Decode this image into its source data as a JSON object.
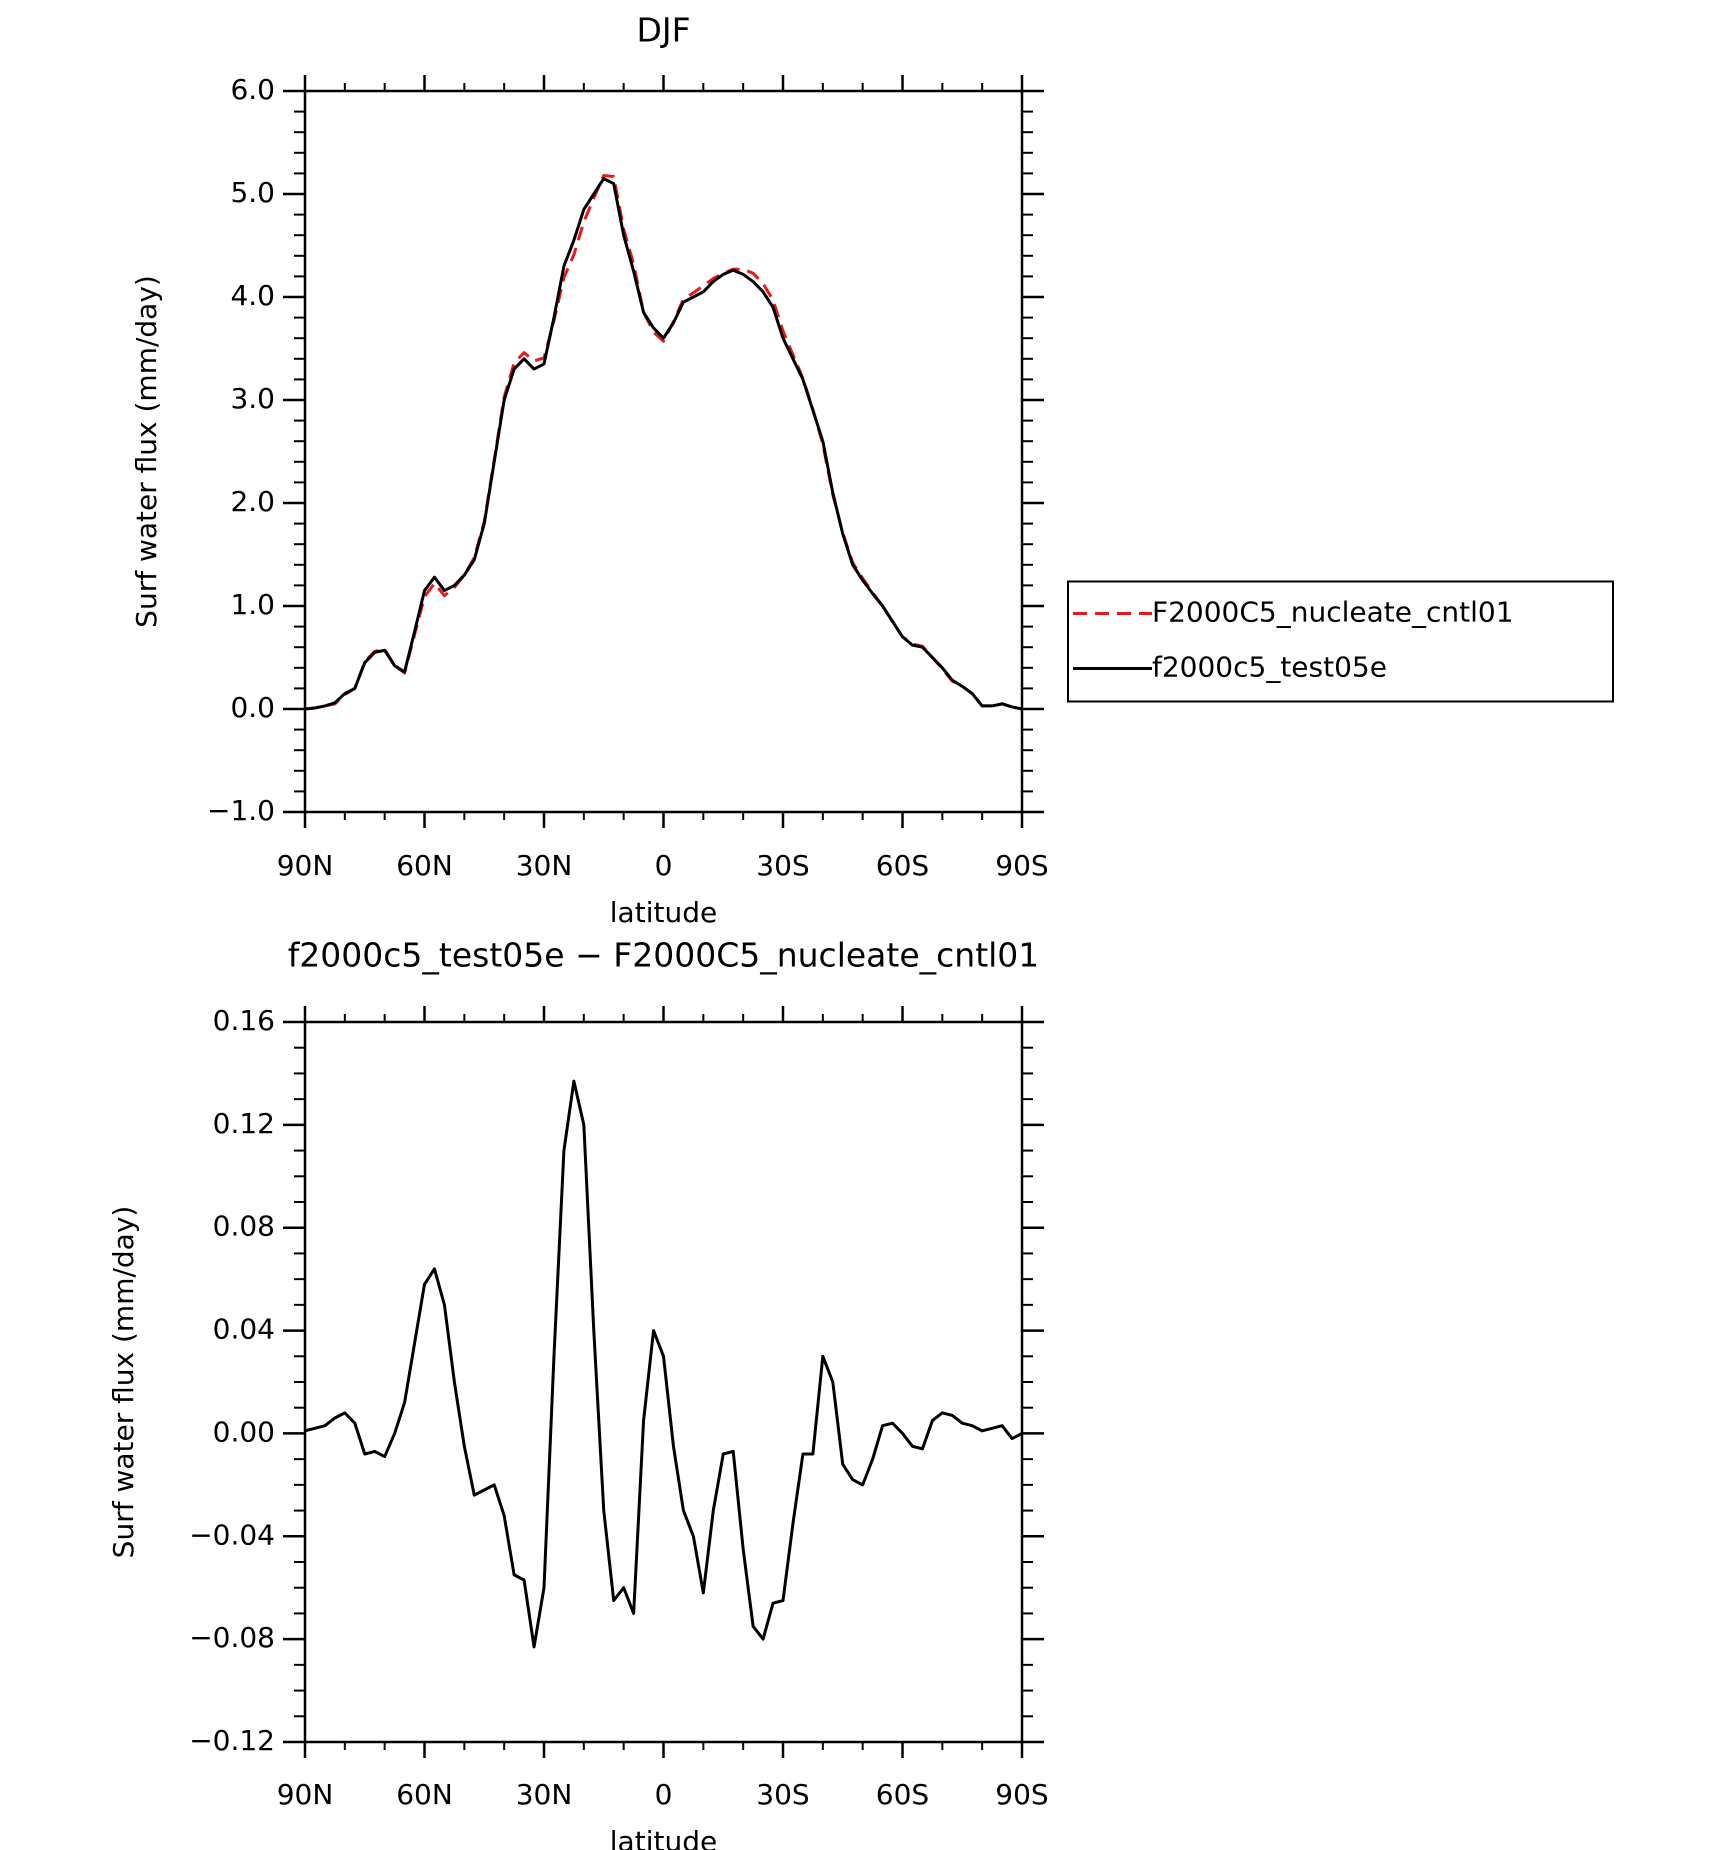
{
  "chart_data": [
    {
      "type": "line",
      "title": "DJF",
      "xlabel": "latitude",
      "ylabel": "Surf water flux (mm/day)",
      "x": [
        90,
        87.5,
        85,
        82.5,
        80,
        77.5,
        75,
        72.5,
        70,
        67.5,
        65,
        62.5,
        60,
        57.5,
        55,
        52.5,
        50,
        47.5,
        45,
        42.5,
        40,
        37.5,
        35,
        32.5,
        30,
        27.5,
        25,
        22.5,
        20,
        17.5,
        15,
        12.5,
        10,
        7.5,
        5,
        2.5,
        0,
        -2.5,
        -5,
        -7.5,
        -10,
        -12.5,
        -15,
        -17.5,
        -20,
        -22.5,
        -25,
        -27.5,
        -30,
        -32.5,
        -35,
        -37.5,
        -40,
        -42.5,
        -45,
        -47.5,
        -50,
        -52.5,
        -55,
        -57.5,
        -60,
        -62.5,
        -65,
        -67.5,
        -70,
        -72.5,
        -75,
        -77.5,
        -80,
        -82.5,
        -85,
        -87.5,
        -90
      ],
      "series": [
        {
          "name": "F2000C5_nucleate_cntl01",
          "color": "#e8191c",
          "style": "dashed",
          "values": [
            0.0,
            0.01,
            0.03,
            0.05,
            0.14,
            0.2,
            0.46,
            0.56,
            0.58,
            0.42,
            0.35,
            0.72,
            1.09,
            1.22,
            1.1,
            1.18,
            1.3,
            1.47,
            1.82,
            2.42,
            3.03,
            3.36,
            3.46,
            3.38,
            3.41,
            3.77,
            4.19,
            4.41,
            4.73,
            4.96,
            5.18,
            5.17,
            4.66,
            4.32,
            3.85,
            3.66,
            3.57,
            3.76,
            3.98,
            4.04,
            4.11,
            4.18,
            4.23,
            4.27,
            4.27,
            4.23,
            4.13,
            3.97,
            3.67,
            3.44,
            3.21,
            2.91,
            2.57,
            2.08,
            1.71,
            1.42,
            1.27,
            1.13,
            1.0,
            0.85,
            0.7,
            0.63,
            0.61,
            0.5,
            0.39,
            0.27,
            0.22,
            0.15,
            0.03,
            0.03,
            0.05,
            0.02,
            0.0
          ]
        },
        {
          "name": "f2000c5_test05e",
          "color": "#000000",
          "style": "solid",
          "values": [
            0.0,
            0.01,
            0.03,
            0.06,
            0.15,
            0.2,
            0.45,
            0.55,
            0.57,
            0.42,
            0.36,
            0.75,
            1.15,
            1.28,
            1.15,
            1.2,
            1.3,
            1.45,
            1.8,
            2.4,
            3.0,
            3.3,
            3.4,
            3.3,
            3.35,
            3.8,
            4.3,
            4.55,
            4.85,
            5.0,
            5.15,
            5.1,
            4.6,
            4.25,
            3.85,
            3.7,
            3.6,
            3.75,
            3.95,
            4.0,
            4.05,
            4.15,
            4.22,
            4.26,
            4.22,
            4.15,
            4.05,
            3.9,
            3.6,
            3.4,
            3.2,
            2.9,
            2.6,
            2.1,
            1.7,
            1.4,
            1.25,
            1.12,
            1.0,
            0.85,
            0.7,
            0.62,
            0.6,
            0.5,
            0.4,
            0.28,
            0.22,
            0.15,
            0.03,
            0.03,
            0.05,
            0.02,
            0.0
          ]
        }
      ],
      "xlim": [
        90,
        -90
      ],
      "xticks": [
        {
          "value": 90,
          "label": "90N"
        },
        {
          "value": 60,
          "label": "60N"
        },
        {
          "value": 30,
          "label": "30N"
        },
        0,
        {
          "value": -30,
          "label": "30S"
        },
        {
          "value": -60,
          "label": "60S"
        },
        {
          "value": -90,
          "label": "90S"
        }
      ],
      "ylim": [
        -1,
        6
      ],
      "yticks": [
        {
          "value": -1,
          "label": "−1.0"
        },
        {
          "value": 0,
          "label": "0.0"
        },
        {
          "value": 1,
          "label": "1.0"
        },
        {
          "value": 2,
          "label": "2.0"
        },
        {
          "value": 3,
          "label": "3.0"
        },
        {
          "value": 4,
          "label": "4.0"
        },
        {
          "value": 5,
          "label": "5.0"
        },
        {
          "value": 6,
          "label": "6.0"
        }
      ],
      "legend": "right"
    },
    {
      "type": "line",
      "title": "f2000c5_test05e − F2000C5_nucleate_cntl01",
      "xlabel": "latitude",
      "ylabel": "Surf water flux (mm/day)",
      "x": [
        90,
        87.5,
        85,
        82.5,
        80,
        77.5,
        75,
        72.5,
        70,
        67.5,
        65,
        62.5,
        60,
        57.5,
        55,
        52.5,
        50,
        47.5,
        45,
        42.5,
        40,
        37.5,
        35,
        32.5,
        30,
        27.5,
        25,
        22.5,
        20,
        17.5,
        15,
        12.5,
        10,
        7.5,
        5,
        2.5,
        0,
        -2.5,
        -5,
        -7.5,
        -10,
        -12.5,
        -15,
        -17.5,
        -20,
        -22.5,
        -25,
        -27.5,
        -30,
        -32.5,
        -35,
        -37.5,
        -40,
        -42.5,
        -45,
        -47.5,
        -50,
        -52.5,
        -55,
        -57.5,
        -60,
        -62.5,
        -65,
        -67.5,
        -70,
        -72.5,
        -75,
        -77.5,
        -80,
        -82.5,
        -85,
        -87.5,
        -90
      ],
      "color": "#000000",
      "values": [
        0.001,
        0.002,
        0.003,
        0.006,
        0.008,
        0.004,
        -0.008,
        -0.007,
        -0.009,
        0.0,
        0.012,
        0.035,
        0.058,
        0.064,
        0.05,
        0.02,
        -0.005,
        -0.024,
        -0.022,
        -0.02,
        -0.032,
        -0.055,
        -0.057,
        -0.083,
        -0.06,
        0.03,
        0.11,
        0.137,
        0.12,
        0.04,
        -0.03,
        -0.065,
        -0.06,
        -0.07,
        0.005,
        0.04,
        0.03,
        -0.005,
        -0.03,
        -0.04,
        -0.062,
        -0.03,
        -0.008,
        -0.007,
        -0.045,
        -0.075,
        -0.08,
        -0.066,
        -0.065,
        -0.035,
        -0.008,
        -0.008,
        0.03,
        0.02,
        -0.012,
        -0.018,
        -0.02,
        -0.01,
        0.003,
        0.004,
        0.0,
        -0.005,
        -0.006,
        0.005,
        0.008,
        0.007,
        0.004,
        0.003,
        0.001,
        0.002,
        0.003,
        -0.002,
        0.0
      ],
      "xlim": [
        90,
        -90
      ],
      "xticks": [
        {
          "value": 90,
          "label": "90N"
        },
        {
          "value": 60,
          "label": "60N"
        },
        {
          "value": 30,
          "label": "30N"
        },
        0,
        {
          "value": -30,
          "label": "30S"
        },
        {
          "value": -60,
          "label": "60S"
        },
        {
          "value": -90,
          "label": "90S"
        }
      ],
      "ylim": [
        -0.12,
        0.16
      ],
      "yticks": [
        {
          "value": -0.12,
          "label": "−0.12"
        },
        {
          "value": -0.08,
          "label": "−0.08"
        },
        {
          "value": -0.04,
          "label": "−0.04"
        },
        {
          "value": 0,
          "label": "0.00"
        },
        0.04,
        0.08,
        0.12,
        0.16
      ]
    }
  ]
}
